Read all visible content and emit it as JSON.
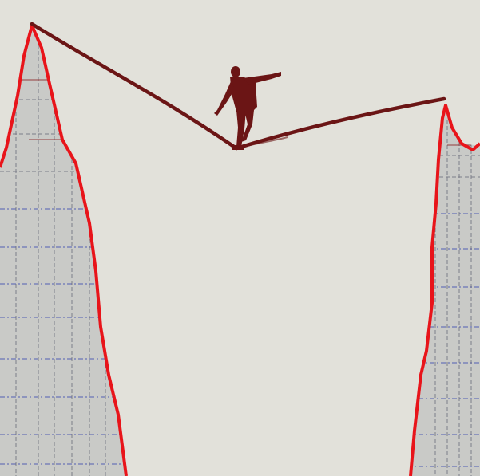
{
  "scene": {
    "description_free": true,
    "colors": {
      "background": "#e2e1da",
      "mountain_fill": "#c9cac7",
      "mountain_outline": "#e8141a",
      "grid_dark": "#5a5a6a",
      "grid_blue": "#5a64b4",
      "grid_red": "#8c2a2a",
      "rope": "#6b1515",
      "figure": "#6b1515"
    },
    "elements": [
      "left-mountain",
      "right-mountain",
      "tightrope",
      "tightrope-walker"
    ]
  }
}
